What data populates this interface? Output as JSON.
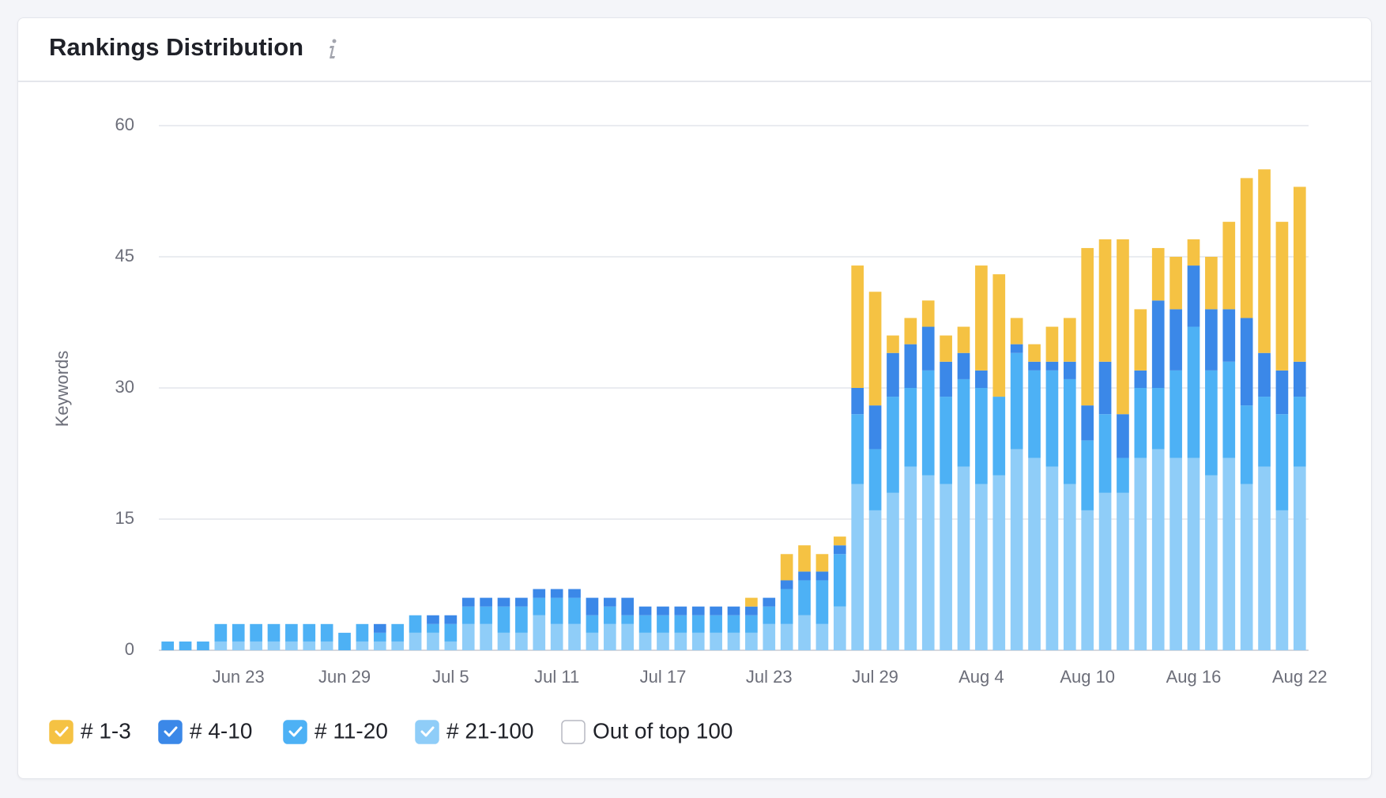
{
  "chart_data": {
    "type": "bar",
    "stacked": true,
    "title": "Rankings Distribution",
    "y_label": "Keywords",
    "categories": [
      null,
      null,
      null,
      null,
      "Jun 23",
      null,
      null,
      null,
      null,
      null,
      "Jun 29",
      null,
      null,
      null,
      null,
      null,
      "Jul 5",
      null,
      null,
      null,
      null,
      null,
      "Jul 11",
      null,
      null,
      null,
      null,
      null,
      "Jul 17",
      null,
      null,
      null,
      null,
      null,
      "Jul 23",
      null,
      null,
      null,
      null,
      null,
      "Jul 29",
      null,
      null,
      null,
      null,
      null,
      "Aug 4",
      null,
      null,
      null,
      null,
      null,
      "Aug 10",
      null,
      null,
      null,
      null,
      null,
      "Aug 16",
      null,
      null,
      null,
      null,
      null,
      "Aug 22"
    ],
    "series": [
      {
        "name": "# 21-100",
        "color": "#8fcdf8",
        "checked": true,
        "values": [
          0,
          0,
          0,
          1,
          1,
          1,
          1,
          1,
          1,
          1,
          0,
          1,
          1,
          1,
          2,
          2,
          1,
          3,
          3,
          2,
          2,
          4,
          3,
          3,
          2,
          3,
          3,
          2,
          2,
          2,
          2,
          2,
          2,
          2,
          3,
          3,
          4,
          3,
          5,
          19,
          16,
          18,
          21,
          20,
          19,
          21,
          19,
          20,
          23,
          22,
          21,
          19,
          16,
          18,
          18,
          22,
          23,
          22,
          22,
          20,
          22,
          19,
          21,
          16,
          21
        ]
      },
      {
        "name": "# 11-20",
        "color": "#4db1f5",
        "checked": true,
        "values": [
          1,
          1,
          1,
          2,
          2,
          2,
          2,
          2,
          2,
          2,
          2,
          2,
          1,
          2,
          2,
          1,
          2,
          2,
          2,
          3,
          3,
          2,
          3,
          3,
          2,
          2,
          1,
          2,
          2,
          2,
          2,
          2,
          2,
          2,
          2,
          4,
          4,
          5,
          6,
          8,
          7,
          11,
          9,
          12,
          10,
          10,
          11,
          9,
          11,
          10,
          11,
          12,
          8,
          9,
          4,
          8,
          7,
          10,
          15,
          12,
          11,
          9,
          8,
          11,
          8
        ]
      },
      {
        "name": "# 4-10",
        "color": "#3b88e8",
        "checked": true,
        "values": [
          0,
          0,
          0,
          0,
          0,
          0,
          0,
          0,
          0,
          0,
          0,
          0,
          1,
          0,
          0,
          1,
          1,
          1,
          1,
          1,
          1,
          1,
          1,
          1,
          2,
          1,
          2,
          1,
          1,
          1,
          1,
          1,
          1,
          1,
          1,
          1,
          1,
          1,
          1,
          3,
          5,
          5,
          5,
          5,
          4,
          3,
          2,
          0,
          1,
          1,
          1,
          2,
          4,
          6,
          5,
          2,
          10,
          7,
          7,
          7,
          6,
          10,
          5,
          5,
          4
        ]
      },
      {
        "name": "# 1-3",
        "color": "#f5c243",
        "checked": true,
        "values": [
          0,
          0,
          0,
          0,
          0,
          0,
          0,
          0,
          0,
          0,
          0,
          0,
          0,
          0,
          0,
          0,
          0,
          0,
          0,
          0,
          0,
          0,
          0,
          0,
          0,
          0,
          0,
          0,
          0,
          0,
          0,
          0,
          0,
          1,
          0,
          3,
          3,
          2,
          1,
          14,
          13,
          2,
          3,
          3,
          3,
          3,
          12,
          14,
          3,
          2,
          4,
          5,
          18,
          14,
          20,
          7,
          6,
          6,
          3,
          6,
          10,
          16,
          21,
          17,
          20
        ]
      },
      {
        "name": "Out of top 100",
        "color": "#ffffff",
        "checked": false
      }
    ],
    "ylim": [
      0,
      60
    ],
    "yticks": [
      0,
      15,
      30,
      45,
      60
    ],
    "grid": true
  }
}
